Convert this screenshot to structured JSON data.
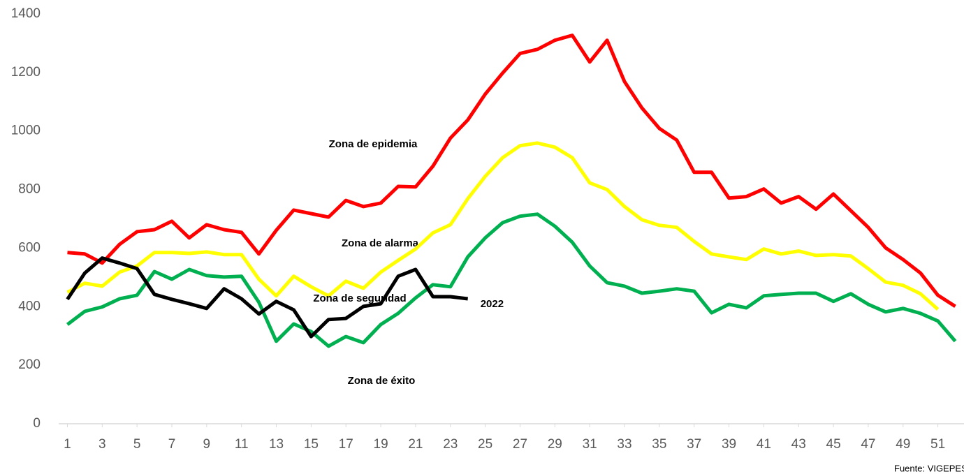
{
  "chart_data": {
    "type": "line",
    "x": [
      1,
      2,
      3,
      4,
      5,
      6,
      7,
      8,
      9,
      10,
      11,
      12,
      13,
      14,
      15,
      16,
      17,
      18,
      19,
      20,
      21,
      22,
      23,
      24,
      25,
      26,
      27,
      28,
      29,
      30,
      31,
      32,
      33,
      34,
      35,
      36,
      37,
      38,
      39,
      40,
      41,
      42,
      43,
      44,
      45,
      46,
      47,
      48,
      49,
      50,
      51,
      52
    ],
    "series": [
      {
        "name": "Zona de epidemia",
        "color": "#ff0000",
        "values": [
          585,
          580,
          549,
          613,
          656,
          663,
          692,
          635,
          680,
          663,
          654,
          580,
          661,
          730,
          718,
          706,
          763,
          742,
          754,
          811,
          809,
          880,
          976,
          1038,
          1126,
          1198,
          1265,
          1279,
          1310,
          1327,
          1236,
          1310,
          1169,
          1079,
          1009,
          969,
          859,
          859,
          771,
          776,
          802,
          754,
          776,
          733,
          785,
          728,
          671,
          601,
          561,
          515,
          439,
          401
        ]
      },
      {
        "name": "Zona de alarma",
        "color": "#ffff00",
        "values": [
          449,
          480,
          470,
          518,
          539,
          585,
          585,
          582,
          587,
          578,
          578,
          494,
          437,
          504,
          468,
          437,
          487,
          463,
          518,
          558,
          597,
          652,
          680,
          769,
          845,
          909,
          950,
          959,
          945,
          909,
          823,
          800,
          742,
          697,
          678,
          671,
          623,
          580,
          570,
          561,
          597,
          580,
          590,
          575,
          578,
          573,
          530,
          484,
          473,
          444,
          391,
          null
        ]
      },
      {
        "name": "Zona de seguridad",
        "color": "#00b050",
        "values": [
          339,
          384,
          399,
          427,
          439,
          520,
          494,
          527,
          506,
          501,
          504,
          415,
          282,
          341,
          315,
          265,
          298,
          277,
          339,
          377,
          430,
          475,
          468,
          570,
          635,
          687,
          709,
          716,
          675,
          620,
          539,
          482,
          470,
          446,
          453,
          461,
          453,
          379,
          408,
          396,
          437,
          442,
          446,
          446,
          418,
          444,
          408,
          382,
          394,
          377,
          351,
          282
        ]
      },
      {
        "name": "2022",
        "color": "#000000",
        "values": [
          425,
          515,
          566,
          549,
          530,
          442,
          425,
          410,
          394,
          461,
          427,
          375,
          418,
          389,
          298,
          356,
          360,
          401,
          410,
          504,
          527,
          434,
          434,
          427,
          null,
          null,
          null,
          null,
          null,
          null,
          null,
          null,
          null,
          null,
          null,
          null,
          null,
          null,
          null,
          null,
          null,
          null,
          null,
          null,
          null,
          null,
          null,
          null,
          null,
          null,
          null,
          null
        ]
      }
    ],
    "annotations": [
      "Zona de epidemia",
      "Zona de alarma",
      "Zona de seguridad",
      "Zona de éxito"
    ],
    "source": "Fuente: VIGEPES",
    "xlim": [
      0.5,
      52.5
    ],
    "xticks": [
      1,
      3,
      5,
      7,
      9,
      11,
      13,
      15,
      17,
      19,
      21,
      23,
      25,
      27,
      29,
      31,
      33,
      35,
      37,
      39,
      41,
      43,
      45,
      47,
      49,
      51
    ],
    "ylim": [
      0,
      1400
    ],
    "yticks": [
      0,
      200,
      400,
      600,
      800,
      1000,
      1200,
      1400
    ],
    "grid": false
  }
}
